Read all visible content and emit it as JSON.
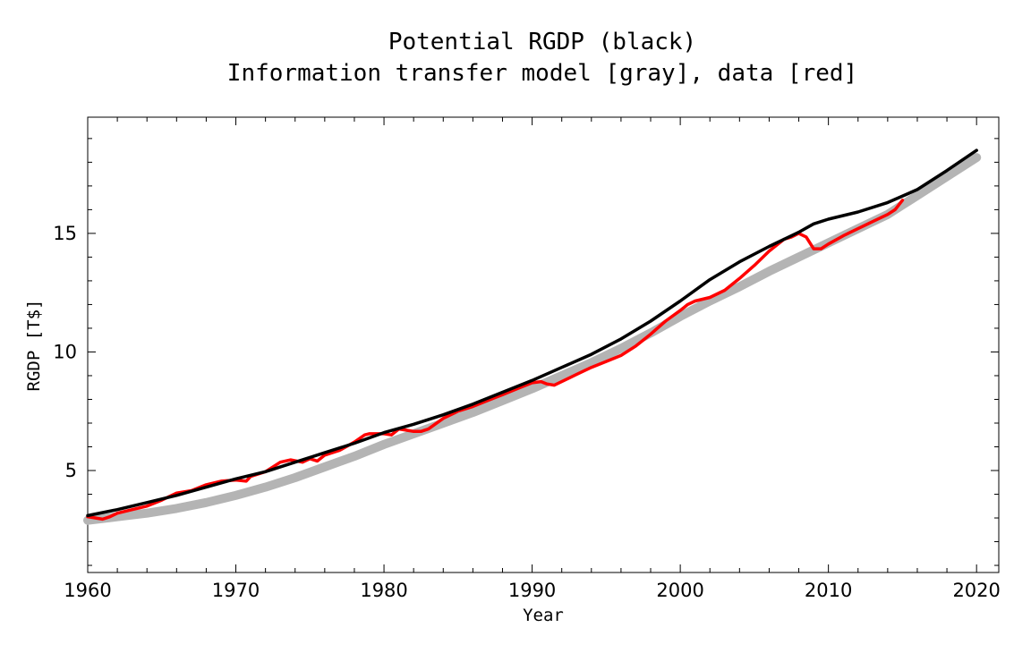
{
  "chart_data": {
    "type": "line",
    "title_line1": "Potential RGDP (black)",
    "title_line2": "Information transfer model [gray], data [red]",
    "xlabel": "Year",
    "ylabel": "RGDP [T$]",
    "xlim": [
      1960,
      2021.5
    ],
    "ylim": [
      0.7,
      19.9
    ],
    "x_ticks": [
      1960,
      1970,
      1980,
      1990,
      2000,
      2010,
      2020
    ],
    "y_ticks": [
      5,
      10,
      15
    ],
    "grid": false,
    "series": [
      {
        "color": "#b4b4b4",
        "x": [
          1960,
          1962,
          1964,
          1966,
          1968,
          1970,
          1972,
          1974,
          1976,
          1978,
          1980,
          1982,
          1984,
          1986,
          1988,
          1990,
          1992,
          1994,
          1996,
          1998,
          2000,
          2002,
          2004,
          2006,
          2008,
          2010,
          2012,
          2014,
          2016,
          2018,
          2020
        ],
        "y": [
          2.9,
          3.05,
          3.2,
          3.4,
          3.65,
          3.95,
          4.3,
          4.7,
          5.15,
          5.6,
          6.1,
          6.55,
          7.0,
          7.45,
          7.95,
          8.45,
          9.0,
          9.55,
          10.15,
          10.8,
          11.5,
          12.15,
          12.75,
          13.4,
          14.0,
          14.6,
          15.2,
          15.8,
          16.6,
          17.4,
          18.2
        ]
      },
      {
        "color": "#ff0000",
        "x": [
          1960,
          1960.5,
          1961,
          1961.5,
          1962,
          1963,
          1964,
          1965,
          1966,
          1967,
          1968,
          1969,
          1970,
          1970.7,
          1971,
          1972,
          1973,
          1973.7,
          1974.5,
          1975,
          1975.5,
          1976,
          1977,
          1978,
          1978.7,
          1979,
          1980,
          1980.5,
          1981,
          1981.5,
          1982,
          1982.5,
          1983,
          1984,
          1985,
          1986,
          1987,
          1988,
          1989,
          1990,
          1990.6,
          1991,
          1991.5,
          1992,
          1993,
          1994,
          1995,
          1996,
          1997,
          1998,
          1999,
          2000,
          2000.5,
          2001,
          2002,
          2003,
          2004,
          2005,
          2006,
          2007,
          2007.5,
          2008,
          2008.5,
          2009,
          2009.5,
          2010,
          2011,
          2012,
          2013,
          2014,
          2014.5,
          2015
        ],
        "y": [
          3.05,
          3.0,
          2.95,
          3.05,
          3.2,
          3.35,
          3.5,
          3.75,
          4.05,
          4.15,
          4.4,
          4.55,
          4.6,
          4.55,
          4.75,
          4.95,
          5.35,
          5.45,
          5.35,
          5.5,
          5.4,
          5.65,
          5.85,
          6.2,
          6.5,
          6.55,
          6.55,
          6.5,
          6.75,
          6.7,
          6.65,
          6.65,
          6.75,
          7.2,
          7.5,
          7.7,
          7.95,
          8.2,
          8.45,
          8.7,
          8.75,
          8.65,
          8.6,
          8.75,
          9.05,
          9.35,
          9.6,
          9.85,
          10.25,
          10.75,
          11.3,
          11.75,
          12.0,
          12.15,
          12.3,
          12.6,
          13.1,
          13.65,
          14.25,
          14.75,
          14.85,
          15.0,
          14.85,
          14.35,
          14.35,
          14.55,
          14.9,
          15.2,
          15.5,
          15.8,
          16.0,
          16.4
        ]
      },
      {
        "color": "#000000",
        "x": [
          1960,
          1962,
          1964,
          1966,
          1968,
          1970,
          1972,
          1974,
          1976,
          1978,
          1980,
          1982,
          1984,
          1986,
          1988,
          1990,
          1992,
          1994,
          1996,
          1998,
          2000,
          2002,
          2004,
          2006,
          2008,
          2009,
          2010,
          2012,
          2014,
          2016,
          2018,
          2020
        ],
        "y": [
          3.1,
          3.35,
          3.65,
          3.95,
          4.3,
          4.65,
          4.95,
          5.35,
          5.75,
          6.15,
          6.6,
          6.95,
          7.35,
          7.8,
          8.3,
          8.8,
          9.35,
          9.9,
          10.55,
          11.3,
          12.15,
          13.05,
          13.8,
          14.45,
          15.05,
          15.4,
          15.6,
          15.9,
          16.3,
          16.85,
          17.65,
          18.5
        ]
      }
    ]
  }
}
